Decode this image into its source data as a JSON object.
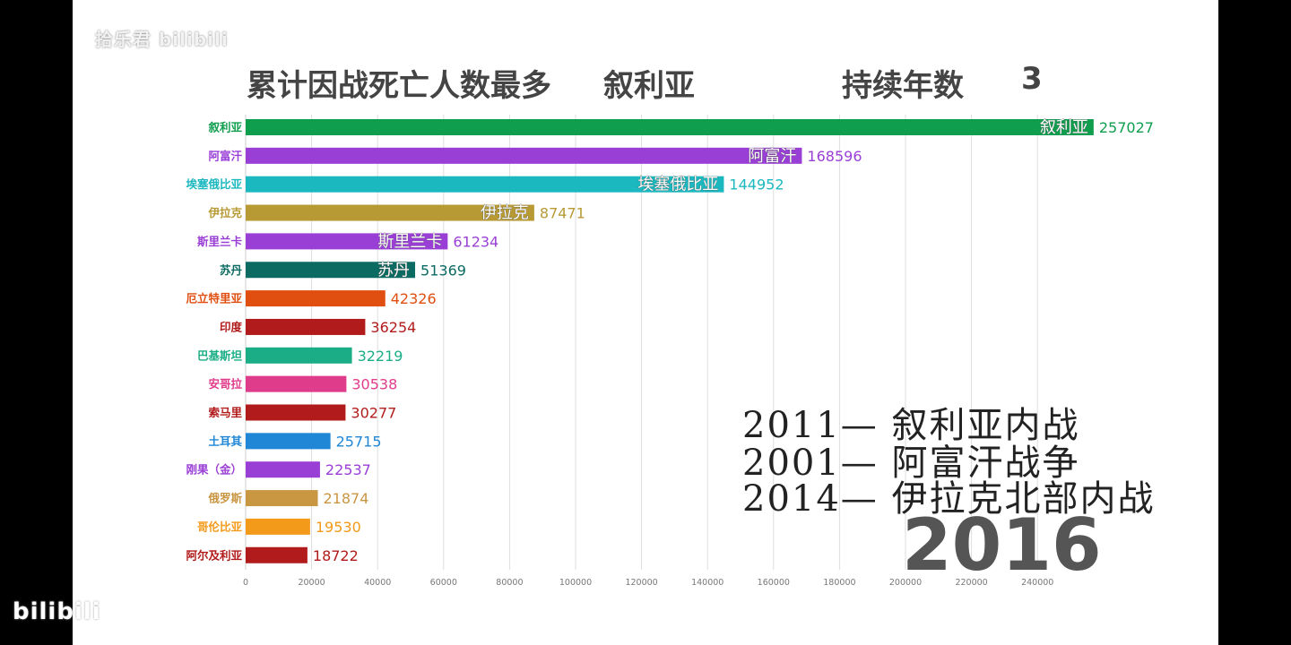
{
  "watermark": {
    "top": "拾乐君 bilibili",
    "bottom": "bilibili"
  },
  "header": {
    "label_most": "累计因战死亡人数最多",
    "top_country": "叙利亚",
    "label_years": "持续年数",
    "years_value": "3"
  },
  "notes": [
    "2011— 叙利亚内战",
    "2001— 阿富汗战争",
    "2014— 伊拉克北部内战"
  ],
  "year": "2016",
  "chart_data": {
    "type": "bar",
    "orientation": "horizontal",
    "xlim": [
      0,
      260000
    ],
    "xticks": [
      0,
      20000,
      40000,
      60000,
      80000,
      100000,
      120000,
      140000,
      160000,
      180000,
      200000,
      220000,
      240000
    ],
    "grid": true,
    "categories": [
      "叙利亚",
      "阿富汗",
      "埃塞俄比亚",
      "伊拉克",
      "斯里兰卡",
      "苏丹",
      "厄立特里亚",
      "印度",
      "巴基斯坦",
      "安哥拉",
      "索马里",
      "土耳其",
      "刚果（金）",
      "俄罗斯",
      "哥伦比亚",
      "阿尔及利亚"
    ],
    "values": [
      257027,
      168596,
      144952,
      87471,
      61234,
      51369,
      42326,
      36254,
      32219,
      30538,
      30277,
      25715,
      22537,
      21874,
      19530,
      18722
    ],
    "colors": [
      "#0f9e4e",
      "#9a3fd6",
      "#1cb8c0",
      "#b89a35",
      "#9a3fd6",
      "#0b6b62",
      "#e04e10",
      "#b21b1b",
      "#1bae86",
      "#e03c8c",
      "#b21b1b",
      "#1f87d6",
      "#9a3fd6",
      "#c99642",
      "#f39a1a",
      "#b21b1b"
    ],
    "inside_label_count": 6
  }
}
